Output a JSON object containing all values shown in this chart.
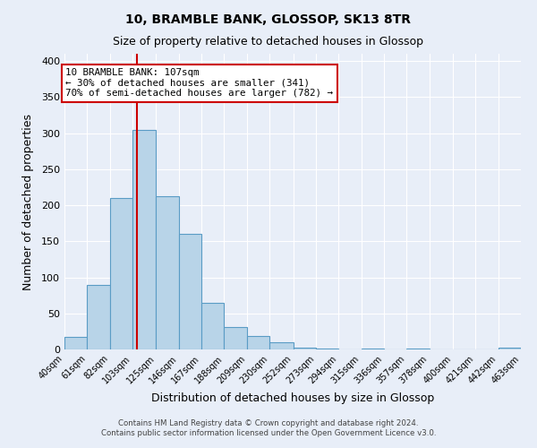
{
  "title": "10, BRAMBLE BANK, GLOSSOP, SK13 8TR",
  "subtitle": "Size of property relative to detached houses in Glossop",
  "xlabel": "Distribution of detached houses by size in Glossop",
  "ylabel": "Number of detached properties",
  "bar_color": "#b8d4e8",
  "bar_edge_color": "#5a9cc5",
  "background_color": "#e8eef8",
  "grid_color": "#ffffff",
  "bins": [
    40,
    61,
    82,
    103,
    125,
    146,
    167,
    188,
    209,
    230,
    252,
    273,
    294,
    315,
    336,
    357,
    378,
    400,
    421,
    442,
    463
  ],
  "bin_labels": [
    "40sqm",
    "61sqm",
    "82sqm",
    "103sqm",
    "125sqm",
    "146sqm",
    "167sqm",
    "188sqm",
    "209sqm",
    "230sqm",
    "252sqm",
    "273sqm",
    "294sqm",
    "315sqm",
    "336sqm",
    "357sqm",
    "378sqm",
    "400sqm",
    "421sqm",
    "442sqm",
    "463sqm"
  ],
  "counts": [
    17,
    89,
    210,
    305,
    213,
    160,
    64,
    31,
    19,
    10,
    3,
    1,
    0,
    1,
    0,
    1,
    0,
    0,
    0,
    3
  ],
  "vline_x": 107,
  "vline_color": "#cc0000",
  "annotation_line1": "10 BRAMBLE BANK: 107sqm",
  "annotation_line2": "← 30% of detached houses are smaller (341)",
  "annotation_line3": "70% of semi-detached houses are larger (782) →",
  "annotation_box_color": "#cc0000",
  "ylim": [
    0,
    410
  ],
  "yticks": [
    0,
    50,
    100,
    150,
    200,
    250,
    300,
    350,
    400
  ],
  "footnote1": "Contains HM Land Registry data © Crown copyright and database right 2024.",
  "footnote2": "Contains public sector information licensed under the Open Government Licence v3.0."
}
